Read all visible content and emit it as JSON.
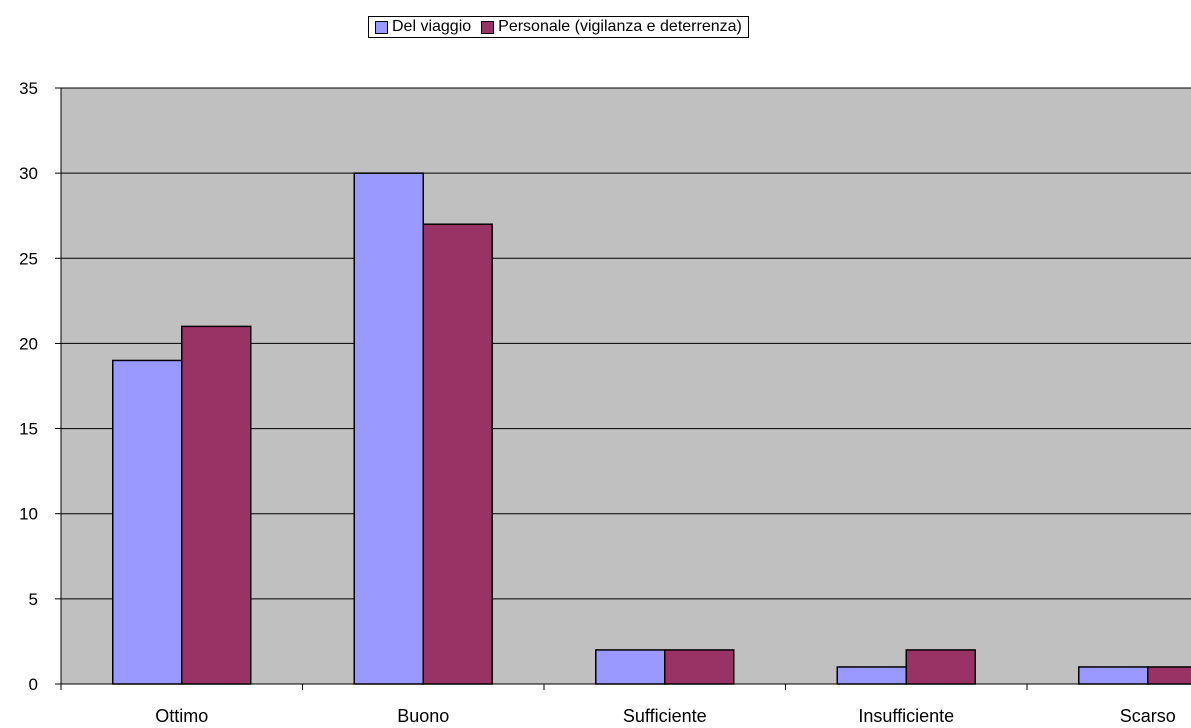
{
  "chart_data": {
    "type": "bar",
    "categories": [
      "Ottimo",
      "Buono",
      "Sufficiente",
      "Insufficiente",
      "Scarso"
    ],
    "series": [
      {
        "name": "Del viaggio",
        "values": [
          19,
          30,
          2,
          1,
          1
        ],
        "color": "#9999ff"
      },
      {
        "name": "Personale (vigilanza e deterrenza)",
        "values": [
          21,
          27,
          2,
          2,
          1
        ],
        "color": "#993366"
      }
    ],
    "ylim": [
      0,
      35
    ],
    "yticks": [
      0,
      5,
      10,
      15,
      20,
      25,
      30,
      35
    ],
    "grid": true,
    "legend_position": "top",
    "plot_background": "#c0c0c0",
    "gridline_color": "#000000",
    "xlabel": "",
    "ylabel": ""
  }
}
